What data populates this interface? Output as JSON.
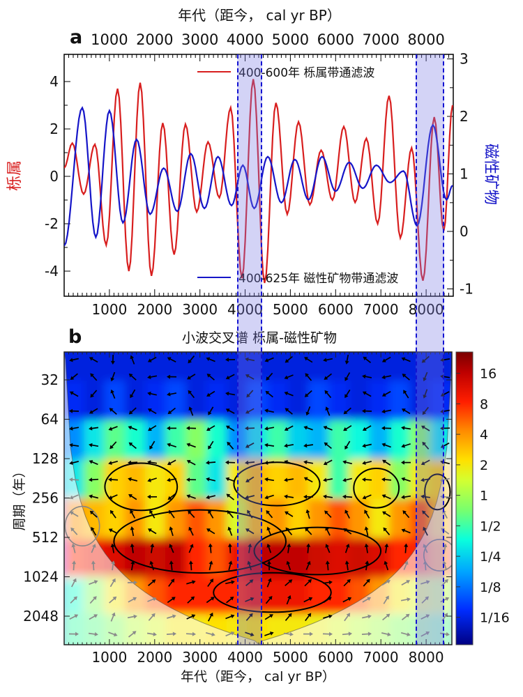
{
  "panel_a": {
    "label": "a",
    "x_axis": {
      "title_top": "年代（距今， cal yr BP）",
      "ticks": [
        1000,
        2000,
        3000,
        4000,
        5000,
        6000,
        7000,
        8000
      ],
      "range": [
        0,
        8600
      ],
      "minor_step": 100
    },
    "left_axis": {
      "title": "栎属",
      "color": "#d81e1e",
      "ticks": [
        4,
        2,
        0,
        -2,
        -4
      ],
      "range": [
        -5.1,
        5.1
      ]
    },
    "right_axis": {
      "title": "磁性矿物",
      "color": "#1515c8",
      "ticks": [
        3,
        2,
        1,
        0,
        -1
      ],
      "range": [
        -1.45,
        3.05
      ]
    },
    "legend": [
      {
        "label": "400-600年 栎属带通滤波",
        "color": "#d81e1e"
      },
      {
        "label": "400-625年 磁性矿物带通滤波",
        "color": "#1515c8"
      }
    ]
  },
  "panel_b": {
    "label": "b",
    "title": "小波交叉谱 栎属-磁性矿物",
    "y_axis": {
      "title": "周期（年）",
      "ticks": [
        32,
        64,
        128,
        256,
        512,
        1024,
        2048
      ]
    },
    "x_axis": {
      "title": "年代（距今， cal yr BP）",
      "ticks": [
        1000,
        2000,
        3000,
        4000,
        5000,
        6000,
        7000,
        8000
      ]
    },
    "colorbar_ticks": [
      "16",
      "8",
      "4",
      "2",
      "1",
      "1/2",
      "1/4",
      "1/8",
      "1/16"
    ]
  },
  "highlight_bands": [
    {
      "start_year": 3815,
      "end_year": 4370
    },
    {
      "start_year": 7770,
      "end_year": 8400
    }
  ],
  "chart_data": [
    {
      "type": "line",
      "panel": "a",
      "title": "",
      "xlabel": "年代（距今， cal yr BP）",
      "xlim": [
        0,
        8600
      ],
      "left_ylabel": "栎属",
      "right_ylabel": "磁性矿物",
      "left_ylim": [
        -5.1,
        5.1
      ],
      "right_ylim": [
        -1.45,
        3.05
      ],
      "series": [
        {
          "name": "400-600年 栎属带通滤波",
          "axis": "left",
          "color": "#d81e1e",
          "points": [
            [
              0,
              0.35
            ],
            [
              180,
              1.4
            ],
            [
              430,
              -0.75
            ],
            [
              680,
              1.35
            ],
            [
              930,
              -2.9
            ],
            [
              1180,
              3.7
            ],
            [
              1430,
              -4.0
            ],
            [
              1680,
              3.95
            ],
            [
              1930,
              -4.2
            ],
            [
              2180,
              2.25
            ],
            [
              2430,
              -3.3
            ],
            [
              2680,
              2.2
            ],
            [
              2930,
              -1.5
            ],
            [
              3180,
              1.45
            ],
            [
              3430,
              -0.9
            ],
            [
              3680,
              2.9
            ],
            [
              3930,
              -4.3
            ],
            [
              4180,
              4.1
            ],
            [
              4430,
              -4.5
            ],
            [
              4680,
              3.1
            ],
            [
              4930,
              -1.6
            ],
            [
              5180,
              2.3
            ],
            [
              5430,
              -1.2
            ],
            [
              5680,
              1.1
            ],
            [
              5930,
              -1.0
            ],
            [
              6180,
              2.1
            ],
            [
              6430,
              -1.1
            ],
            [
              6680,
              1.6
            ],
            [
              6930,
              -2.0
            ],
            [
              7180,
              3.4
            ],
            [
              7430,
              -2.6
            ],
            [
              7680,
              1.2
            ],
            [
              7930,
              -4.4
            ],
            [
              8180,
              2.5
            ],
            [
              8390,
              -2.3
            ],
            [
              8585,
              3.0
            ]
          ]
        },
        {
          "name": "400-625年 磁性矿物带通滤波",
          "axis": "right",
          "color": "#1515c8",
          "points": [
            [
              0,
              -0.25
            ],
            [
              400,
              2.15
            ],
            [
              700,
              -0.1
            ],
            [
              1000,
              2.1
            ],
            [
              1300,
              0.15
            ],
            [
              1600,
              1.6
            ],
            [
              1900,
              0.3
            ],
            [
              2200,
              1.1
            ],
            [
              2500,
              0.35
            ],
            [
              2800,
              1.35
            ],
            [
              3100,
              0.4
            ],
            [
              3400,
              1.3
            ],
            [
              3700,
              0.45
            ],
            [
              3950,
              1.15
            ],
            [
              4200,
              0.4
            ],
            [
              4500,
              1.3
            ],
            [
              4800,
              0.5
            ],
            [
              5100,
              1.25
            ],
            [
              5400,
              0.55
            ],
            [
              5700,
              1.3
            ],
            [
              6000,
              0.7
            ],
            [
              6300,
              1.2
            ],
            [
              6600,
              0.75
            ],
            [
              6900,
              1.15
            ],
            [
              7200,
              0.85
            ],
            [
              7500,
              1.05
            ],
            [
              7800,
              0.1
            ],
            [
              8150,
              1.85
            ],
            [
              8450,
              0.55
            ],
            [
              8585,
              0.8
            ]
          ]
        }
      ]
    },
    {
      "type": "heatmap",
      "panel": "b",
      "title": "小波交叉谱 栎属-磁性矿物",
      "xlabel": "年代（距今， cal yr BP）",
      "ylabel": "周期（年）",
      "y_scale": "log2 period, years",
      "y_ticks": [
        32,
        64,
        128,
        256,
        512,
        1024,
        2048
      ],
      "colorbar_ticks": [
        "16",
        "8",
        "4",
        "2",
        "1",
        "1/2",
        "1/4",
        "1/8",
        "1/16"
      ],
      "x_years": [
        250,
        700,
        1150,
        1600,
        2050,
        2500,
        2950,
        3400,
        3850,
        4300,
        4750,
        5200,
        5650,
        6100,
        6550,
        7000,
        7450,
        7900,
        8350
      ],
      "period_rows": [
        24,
        48,
        96,
        192,
        384,
        768,
        1536,
        2900
      ],
      "power": [
        [
          0.06,
          0.06,
          0.06,
          0.06,
          0.06,
          0.06,
          0.06,
          0.06,
          0.06,
          0.06,
          0.06,
          0.06,
          0.06,
          0.06,
          0.06,
          0.06,
          0.06,
          0.06,
          0.06
        ],
        [
          0.07,
          0.06,
          0.09,
          0.06,
          0.07,
          0.09,
          0.06,
          0.07,
          0.06,
          0.09,
          0.07,
          0.06,
          0.09,
          0.07,
          0.06,
          0.07,
          0.09,
          0.06,
          0.07
        ],
        [
          0.15,
          0.3,
          0.6,
          0.4,
          0.2,
          0.5,
          0.8,
          0.4,
          0.15,
          0.3,
          0.5,
          0.25,
          0.2,
          0.5,
          0.35,
          0.2,
          0.4,
          0.8,
          0.3
        ],
        [
          0.3,
          0.8,
          2.5,
          3.0,
          2.0,
          2.5,
          0.6,
          0.3,
          2.0,
          3.0,
          2.5,
          3.0,
          2.0,
          0.5,
          2.0,
          2.5,
          0.8,
          2.0,
          2.5
        ],
        [
          4,
          3,
          2.5,
          4,
          2,
          4,
          6,
          4,
          1.5,
          3,
          4,
          2.5,
          4,
          6,
          4,
          2,
          4,
          6,
          3
        ],
        [
          8,
          10,
          12,
          16,
          14,
          16,
          8,
          6,
          10,
          16,
          16,
          16,
          14,
          12,
          14,
          12,
          8,
          8,
          5
        ],
        [
          0.4,
          0.8,
          2,
          4,
          6,
          8,
          8,
          8,
          8,
          10,
          10,
          10,
          8,
          8,
          6,
          4,
          2,
          1.5,
          1.2
        ],
        [
          0.5,
          0.6,
          0.8,
          1.2,
          1.5,
          2,
          2,
          2.2,
          2,
          2.2,
          2,
          2,
          1.8,
          1.5,
          1.2,
          1,
          0.8,
          0.7,
          0.6
        ]
      ],
      "phase_arrow_deg": [
        [
          210,
          150,
          250,
          120,
          200,
          170,
          230,
          140,
          190,
          160,
          220,
          130,
          200,
          250,
          160,
          210,
          140,
          230,
          180
        ],
        [
          160,
          220,
          130,
          240,
          150,
          200,
          120,
          230,
          170,
          210,
          150,
          240,
          130,
          220,
          160,
          200,
          140,
          250,
          190
        ],
        [
          190,
          170,
          210,
          150,
          230,
          180,
          160,
          220,
          140,
          200,
          190,
          170,
          150,
          230,
          210,
          160,
          180,
          140,
          200
        ],
        [
          185,
          175,
          195,
          165,
          180,
          200,
          170,
          185,
          160,
          195,
          180,
          170,
          190,
          175,
          185,
          165,
          180,
          190,
          175
        ],
        [
          150,
          120,
          135,
          110,
          140,
          125,
          115,
          130,
          120,
          140,
          130,
          115,
          125,
          135,
          120,
          130,
          140,
          125,
          135
        ],
        [
          95,
          85,
          100,
          80,
          90,
          105,
          85,
          95,
          75,
          90,
          100,
          85,
          95,
          80,
          90,
          100,
          85,
          95,
          90
        ],
        [
          45,
          30,
          50,
          20,
          40,
          35,
          25,
          45,
          30,
          40,
          50,
          35,
          25,
          45,
          30,
          40,
          20,
          35,
          45
        ],
        [
          350,
          10,
          340,
          20,
          0,
          355,
          15,
          345,
          5,
          350,
          10,
          0,
          340,
          15,
          355,
          5,
          345,
          10,
          0
        ]
      ],
      "coi_note": "cone of influence: regions outside cone are whitened with gray arrows",
      "significance_contours": [
        {
          "year": 1700,
          "period": 210,
          "rx_years": 800,
          "ry_octaves": 0.6
        },
        {
          "year": 4700,
          "period": 200,
          "rx_years": 950,
          "ry_octaves": 0.55
        },
        {
          "year": 6900,
          "period": 215,
          "rx_years": 500,
          "ry_octaves": 0.5
        },
        {
          "year": 8250,
          "period": 230,
          "rx_years": 280,
          "ry_octaves": 0.45
        },
        {
          "year": 3000,
          "period": 550,
          "rx_years": 1900,
          "ry_octaves": 0.8
        },
        {
          "year": 5600,
          "period": 650,
          "rx_years": 1400,
          "ry_octaves": 0.6
        },
        {
          "year": 4600,
          "period": 1350,
          "rx_years": 1300,
          "ry_octaves": 0.5
        },
        {
          "year": 400,
          "period": 420,
          "rx_years": 380,
          "ry_octaves": 0.5,
          "gray": true
        },
        {
          "year": 8300,
          "period": 700,
          "rx_years": 350,
          "ry_octaves": 0.4,
          "gray": true
        }
      ]
    }
  ]
}
